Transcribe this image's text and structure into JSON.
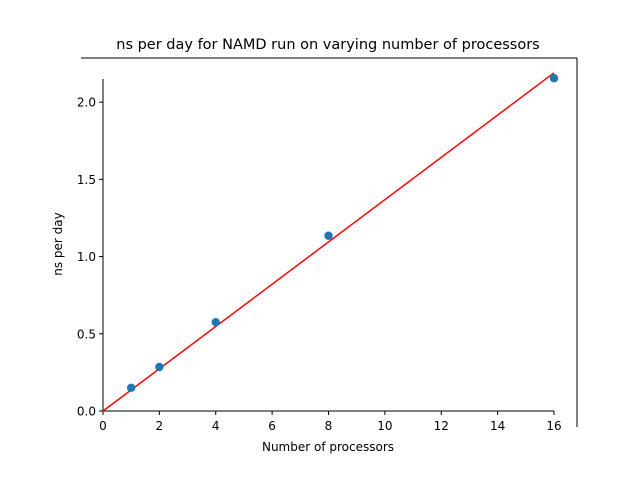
{
  "chart_data": {
    "type": "scatter",
    "title": "ns per day for NAMD run on varying number of processors",
    "xlabel": "Number of processors",
    "ylabel": "ns per day",
    "xlim": [
      0,
      16
    ],
    "ylim": [
      0,
      2.15
    ],
    "xticks": [
      0,
      2,
      4,
      6,
      8,
      10,
      12,
      14,
      16
    ],
    "xtick_labels": [
      "0",
      "2",
      "4",
      "6",
      "8",
      "10",
      "12",
      "14",
      "16"
    ],
    "yticks": [
      0.0,
      0.5,
      1.0,
      1.5,
      2.0
    ],
    "ytick_labels": [
      "0.0",
      "0.5",
      "1.0",
      "1.5",
      "2.0"
    ],
    "grid": false,
    "series": [
      {
        "kind": "scatter",
        "color": "#1f77b4",
        "x": [
          1,
          2,
          4,
          8,
          16
        ],
        "y": [
          0.15,
          0.285,
          0.575,
          1.135,
          2.155
        ]
      },
      {
        "kind": "line",
        "color": "#ff0000",
        "x": [
          0,
          16
        ],
        "y": [
          0,
          2.19
        ]
      }
    ]
  }
}
